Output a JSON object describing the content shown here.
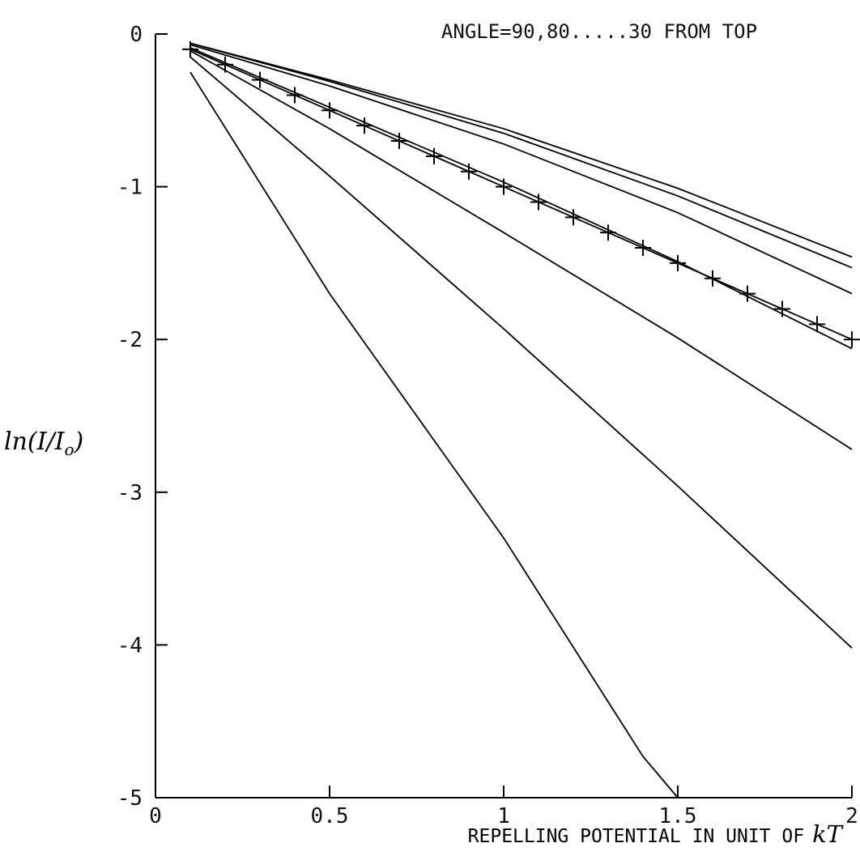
{
  "chart_data": {
    "type": "line",
    "title": "ANGLE=90,80.....30 FROM TOP",
    "xlabel": "REPELLING POTENTIAL IN UNIT OF",
    "xlabel_unit": "kT",
    "ylabel": "ln(I/I_o)",
    "ylabel_parts": {
      "base": "ln(I/I",
      "sub": "o",
      "tail": ")"
    },
    "xlim": [
      0,
      2
    ],
    "ylim": [
      -5,
      0
    ],
    "x_ticks": [
      0,
      0.5,
      1,
      1.5,
      2
    ],
    "x_tick_labels": [
      "0",
      "0.5",
      "1",
      "1.5",
      "2"
    ],
    "y_ticks": [
      0,
      -1,
      -2,
      -3,
      -4,
      -5
    ],
    "y_tick_labels": [
      "0",
      "-1",
      "-2",
      "-3",
      "-4",
      "-5"
    ],
    "grid": false,
    "series": [
      {
        "values": [
          [
            0.1,
            -0.06
          ],
          [
            0.5,
            -0.3
          ],
          [
            1.0,
            -0.62
          ],
          [
            1.5,
            -1.01
          ],
          [
            2.0,
            -1.46
          ]
        ]
      },
      {
        "values": [
          [
            0.1,
            -0.06
          ],
          [
            0.5,
            -0.31
          ],
          [
            1.0,
            -0.65
          ],
          [
            1.5,
            -1.06
          ],
          [
            2.0,
            -1.53
          ]
        ]
      },
      {
        "values": [
          [
            0.1,
            -0.07
          ],
          [
            0.5,
            -0.34
          ],
          [
            1.0,
            -0.72
          ],
          [
            1.5,
            -1.17
          ],
          [
            2.0,
            -1.7
          ]
        ]
      },
      {
        "values": [
          [
            0.1,
            -0.09
          ],
          [
            0.5,
            -0.48
          ],
          [
            1.0,
            -0.97
          ],
          [
            1.5,
            -1.49
          ],
          [
            2.0,
            -2.06
          ]
        ]
      },
      {
        "values": [
          [
            0.1,
            -0.11
          ],
          [
            0.5,
            -0.62
          ],
          [
            1.0,
            -1.3
          ],
          [
            1.5,
            -1.99
          ],
          [
            2.0,
            -2.72
          ]
        ]
      },
      {
        "values": [
          [
            0.1,
            -0.15
          ],
          [
            0.5,
            -0.93
          ],
          [
            1.0,
            -1.93
          ],
          [
            1.5,
            -2.96
          ],
          [
            2.0,
            -4.02
          ]
        ]
      },
      {
        "values": [
          [
            0.1,
            -0.25
          ],
          [
            0.5,
            -1.7
          ],
          [
            1.0,
            -3.3
          ],
          [
            1.4,
            -4.73
          ],
          [
            1.5,
            -5.0
          ]
        ]
      },
      {
        "marker": "+",
        "values": [
          [
            0.1,
            -0.1
          ],
          [
            0.2,
            -0.2
          ],
          [
            0.3,
            -0.3
          ],
          [
            0.4,
            -0.4
          ],
          [
            0.5,
            -0.5
          ],
          [
            0.6,
            -0.6
          ],
          [
            0.7,
            -0.7
          ],
          [
            0.8,
            -0.8
          ],
          [
            0.9,
            -0.9
          ],
          [
            1.0,
            -1.0
          ],
          [
            1.1,
            -1.1
          ],
          [
            1.2,
            -1.2
          ],
          [
            1.3,
            -1.3
          ],
          [
            1.4,
            -1.4
          ],
          [
            1.5,
            -1.5
          ],
          [
            1.6,
            -1.6
          ],
          [
            1.7,
            -1.7
          ],
          [
            1.8,
            -1.8
          ],
          [
            1.9,
            -1.9
          ],
          [
            2.0,
            -2.0
          ]
        ]
      }
    ]
  }
}
